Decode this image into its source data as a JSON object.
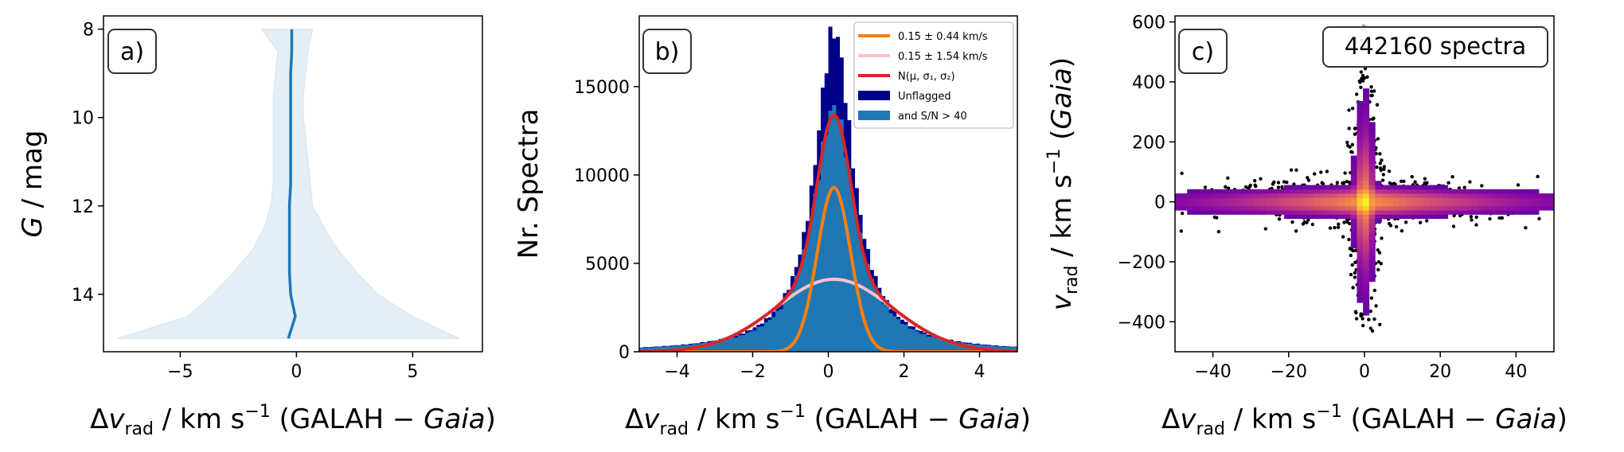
{
  "chart_data": [
    {
      "panel": "a)",
      "type": "area",
      "xlabel": "Δv_rad / km s⁻¹ (GALAH − Gaia)",
      "ylabel": "G / mag",
      "xlim": [
        -8.3,
        8.0
      ],
      "ylim": [
        15.3,
        7.7
      ],
      "xticks": [
        -5,
        0,
        5
      ],
      "yticks": [
        8,
        10,
        12,
        14
      ],
      "y": [
        8.0,
        8.5,
        9.0,
        9.5,
        10.0,
        10.5,
        11.0,
        11.5,
        12.0,
        12.5,
        13.0,
        13.5,
        14.0,
        14.5,
        15.0
      ],
      "median": [
        -0.2,
        -0.2,
        -0.25,
        -0.25,
        -0.25,
        -0.25,
        -0.25,
        -0.25,
        -0.3,
        -0.3,
        -0.3,
        -0.3,
        -0.25,
        -0.05,
        -0.35
      ],
      "lower": [
        -1.5,
        -0.8,
        -0.9,
        -1.0,
        -1.0,
        -1.0,
        -1.0,
        -1.0,
        -1.1,
        -1.4,
        -1.9,
        -2.7,
        -3.6,
        -4.7,
        -7.7
      ],
      "upper": [
        0.7,
        0.5,
        0.4,
        0.3,
        0.3,
        0.4,
        0.5,
        0.6,
        0.7,
        1.2,
        1.8,
        2.6,
        3.5,
        5.0,
        7.0
      ],
      "colors": {
        "line": "#1f77b4",
        "band": "#e3eef7"
      }
    },
    {
      "panel": "b)",
      "type": "bar",
      "xlabel": "Δv_rad / km s⁻¹ (GALAH − Gaia)",
      "ylabel": "Nr. Spectra",
      "xlim": [
        -5,
        5
      ],
      "ylim": [
        0,
        19000
      ],
      "xticks": [
        -4,
        -2,
        0,
        2,
        4
      ],
      "yticks": [
        0,
        5000,
        10000,
        15000
      ],
      "series": [
        {
          "name": "Unflagged",
          "color": "#00008b",
          "peak": 18200,
          "mu": 0.15,
          "gamma": 0.6
        },
        {
          "name": "and S/N > 40",
          "color": "#1f77b4",
          "peak": 13800,
          "mu": 0.15,
          "gamma": 0.66
        }
      ],
      "curves": [
        {
          "name": "0.15 ± 0.44 km/s",
          "color": "#ff7f0e",
          "mu": 0.15,
          "sigma": 0.44,
          "amp": 9300
        },
        {
          "name": "0.15 ± 1.54 km/s",
          "color": "#ffc0cb",
          "mu": 0.15,
          "sigma": 1.54,
          "amp": 4100
        },
        {
          "name": "N(μ, σ₁, σ₂)",
          "color": "#d62728",
          "mu": 0.15
        }
      ],
      "legend": "top-right"
    },
    {
      "panel": "c)",
      "type": "heatmap",
      "annotation": "442160 spectra",
      "xlabel": "Δv_rad / km s⁻¹ (GALAH − Gaia)",
      "ylabel": "v_rad / km s⁻¹ (Gaia)",
      "xlim": [
        -50,
        50
      ],
      "ylim": [
        -500,
        620
      ],
      "xticks": [
        -40,
        -20,
        0,
        20,
        40
      ],
      "yticks": [
        -400,
        -200,
        0,
        200,
        400,
        600
      ],
      "colormap": "plasma"
    }
  ]
}
